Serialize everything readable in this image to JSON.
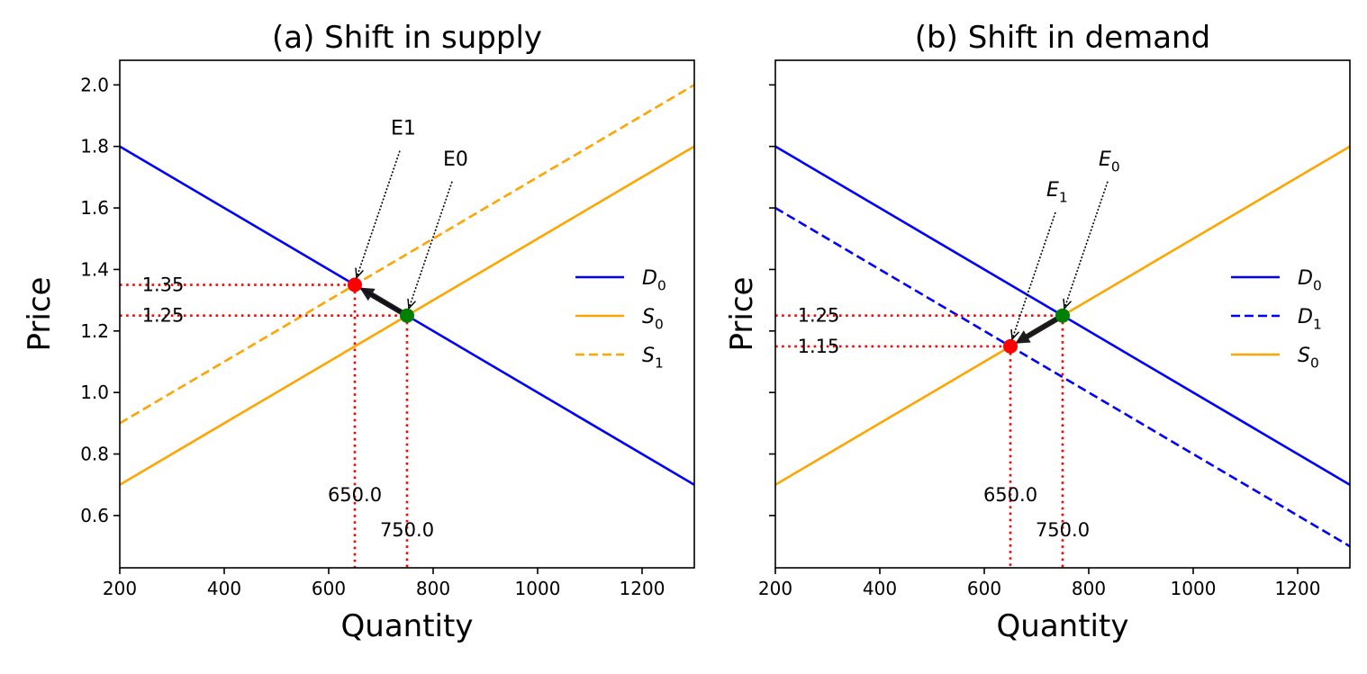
{
  "chart_data": [
    {
      "type": "line",
      "title": "(a) Shift in supply",
      "xlabel": "Quantity",
      "ylabel": "Price",
      "xlim": [
        200,
        1300
      ],
      "ylim": [
        0.43,
        2.08
      ],
      "xticks": [
        200,
        400,
        600,
        800,
        1000,
        1200
      ],
      "yticks": [
        0.6,
        0.8,
        1.0,
        1.2,
        1.4,
        1.6,
        1.8,
        2.0
      ],
      "show_yticklabels": true,
      "legend_position": "center-right",
      "series": [
        {
          "name": "D",
          "sub": "0",
          "color": "#0000ff",
          "dash": "solid",
          "x": [
            200,
            1300
          ],
          "y": [
            1.8,
            0.7
          ]
        },
        {
          "name": "S",
          "sub": "0",
          "color": "#ffa500",
          "dash": "solid",
          "x": [
            200,
            1300
          ],
          "y": [
            0.7,
            1.8
          ]
        },
        {
          "name": "S",
          "sub": "1",
          "color": "#ffa500",
          "dash": "dashed",
          "x": [
            200,
            1300
          ],
          "y": [
            0.9,
            2.0
          ]
        }
      ],
      "equilibria": [
        {
          "x": 750,
          "y": 1.25,
          "color": "#008000",
          "label": "E0",
          "label_sub": "",
          "label_x": 850,
          "label_y": 1.75,
          "price_label": "1.25",
          "qty_label": "750.0"
        },
        {
          "x": 650,
          "y": 1.35,
          "color": "#ff0000",
          "label": "E1",
          "label_sub": "",
          "label_x": 750,
          "label_y": 1.85,
          "price_label": "1.35",
          "qty_label": "650.0"
        }
      ],
      "shift_arrow": {
        "from": [
          750,
          1.25
        ],
        "to": [
          650,
          1.35
        ]
      }
    },
    {
      "type": "line",
      "title": "(b) Shift in demand",
      "xlabel": "Quantity",
      "ylabel": "Price",
      "xlim": [
        200,
        1300
      ],
      "ylim": [
        0.43,
        2.08
      ],
      "xticks": [
        200,
        400,
        600,
        800,
        1000,
        1200
      ],
      "yticks": [
        0.6,
        0.8,
        1.0,
        1.2,
        1.4,
        1.6,
        1.8,
        2.0
      ],
      "show_yticklabels": false,
      "legend_position": "center-right",
      "series": [
        {
          "name": "D",
          "sub": "0",
          "color": "#0000ff",
          "dash": "solid",
          "x": [
            200,
            1300
          ],
          "y": [
            1.8,
            0.7
          ]
        },
        {
          "name": "D",
          "sub": "1",
          "color": "#0000ff",
          "dash": "dashed",
          "x": [
            200,
            1300
          ],
          "y": [
            1.6,
            0.5
          ]
        },
        {
          "name": "S",
          "sub": "0",
          "color": "#ffa500",
          "dash": "solid",
          "x": [
            200,
            1300
          ],
          "y": [
            0.7,
            1.8
          ]
        }
      ],
      "equilibria": [
        {
          "x": 750,
          "y": 1.25,
          "color": "#008000",
          "label": "E",
          "label_sub": "0",
          "label_x": 850,
          "label_y": 1.75,
          "price_label": "1.25",
          "qty_label": "750.0"
        },
        {
          "x": 650,
          "y": 1.15,
          "color": "#ff0000",
          "label": "E",
          "label_sub": "1",
          "label_x": 750,
          "label_y": 1.65,
          "price_label": "1.15",
          "qty_label": "650.0"
        }
      ],
      "shift_arrow": {
        "from": [
          750,
          1.25
        ],
        "to": [
          650,
          1.15
        ]
      }
    }
  ]
}
